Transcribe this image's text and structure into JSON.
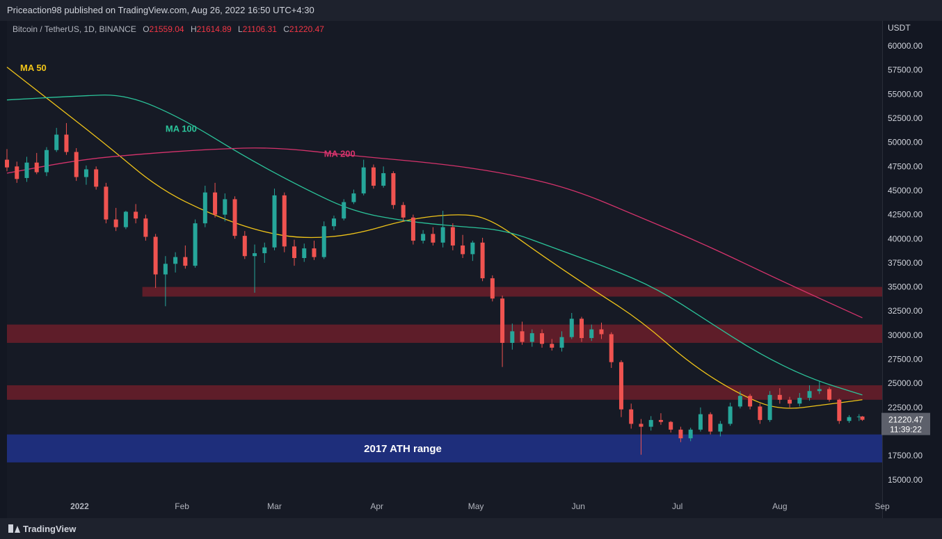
{
  "header": {
    "published": "Priceaction98 published on TradingView.com, Aug 26, 2022 16:50 UTC+4:30"
  },
  "symbol": {
    "name": "Bitcoin / TetherUS, 1D, BINANCE",
    "open_key": "O",
    "open": "21559.04",
    "high_key": "H",
    "high": "21614.89",
    "low_key": "L",
    "low": "21106.31",
    "close_key": "C",
    "close": "21220.47"
  },
  "price_axis": {
    "currency": "USDT",
    "last_price": "21220.47",
    "countdown": "11:39:22"
  },
  "footer": {
    "brand": "TradingView"
  },
  "colors": {
    "bg": "#161a25",
    "up": "#26a69a",
    "down": "#ef5350",
    "ma50": "#f0c419",
    "ma100": "#2bc49a",
    "ma200": "#d6336c",
    "zone_red": "#6b1f2a",
    "zone_blue": "#1f2f80"
  },
  "chart_data": {
    "type": "candlestick",
    "title": "Bitcoin / TetherUS, 1D, BINANCE",
    "ylabel": "USDT",
    "ylim": [
      13400,
      62600
    ],
    "y_ticks": [
      15000,
      17500,
      20000,
      22500,
      25000,
      27500,
      30000,
      32500,
      35000,
      37500,
      40000,
      42500,
      45000,
      47500,
      50000,
      52500,
      55000,
      57500,
      60000
    ],
    "y_tick_labels": [
      "15000.00",
      "17500.00",
      "20000.00",
      "22500.00",
      "25000.00",
      "27500.00",
      "30000.00",
      "32500.00",
      "35000.00",
      "37500.00",
      "40000.00",
      "42500.00",
      "45000.00",
      "47500.00",
      "50000.00",
      "52500.00",
      "55000.00",
      "57500.00",
      "60000.00"
    ],
    "x_start": "2021-12-10",
    "x_end": "2022-09-01",
    "x_ticks": [
      {
        "date": "2022-01-01",
        "label": "2022"
      },
      {
        "date": "2022-02-01",
        "label": "Feb"
      },
      {
        "date": "2022-03-01",
        "label": "Mar"
      },
      {
        "date": "2022-04-01",
        "label": "Apr"
      },
      {
        "date": "2022-05-01",
        "label": "May"
      },
      {
        "date": "2022-06-01",
        "label": "Jun"
      },
      {
        "date": "2022-07-01",
        "label": "Jul"
      },
      {
        "date": "2022-08-01",
        "label": "Aug"
      },
      {
        "date": "2022-09-01",
        "label": "Sep"
      }
    ],
    "candles": [
      {
        "d": "2021-12-10",
        "o": 48200,
        "h": 49300,
        "l": 47000,
        "c": 47400
      },
      {
        "d": "2021-12-13",
        "o": 47500,
        "h": 48000,
        "l": 45800,
        "c": 46200
      },
      {
        "d": "2021-12-16",
        "o": 46300,
        "h": 48500,
        "l": 45900,
        "c": 47900
      },
      {
        "d": "2021-12-19",
        "o": 47900,
        "h": 48900,
        "l": 46700,
        "c": 46900
      },
      {
        "d": "2021-12-22",
        "o": 46900,
        "h": 49500,
        "l": 46500,
        "c": 49200
      },
      {
        "d": "2021-12-25",
        "o": 49200,
        "h": 51500,
        "l": 49000,
        "c": 50800
      },
      {
        "d": "2021-12-28",
        "o": 50800,
        "h": 52000,
        "l": 48700,
        "c": 49000
      },
      {
        "d": "2021-12-31",
        "o": 49000,
        "h": 49400,
        "l": 46000,
        "c": 46400
      },
      {
        "d": "2022-01-03",
        "o": 46400,
        "h": 47600,
        "l": 45600,
        "c": 47200
      },
      {
        "d": "2022-01-06",
        "o": 47200,
        "h": 47500,
        "l": 45100,
        "c": 45400
      },
      {
        "d": "2022-01-09",
        "o": 45400,
        "h": 45800,
        "l": 41600,
        "c": 42000
      },
      {
        "d": "2022-01-12",
        "o": 42000,
        "h": 43200,
        "l": 40800,
        "c": 41200
      },
      {
        "d": "2022-01-15",
        "o": 41200,
        "h": 42900,
        "l": 41000,
        "c": 42800
      },
      {
        "d": "2022-01-18",
        "o": 42800,
        "h": 43600,
        "l": 41600,
        "c": 42100
      },
      {
        "d": "2022-01-21",
        "o": 42100,
        "h": 42500,
        "l": 39800,
        "c": 40200
      },
      {
        "d": "2022-01-24",
        "o": 40200,
        "h": 40500,
        "l": 34900,
        "c": 36300
      },
      {
        "d": "2022-01-27",
        "o": 36300,
        "h": 38200,
        "l": 33000,
        "c": 37400
      },
      {
        "d": "2022-01-30",
        "o": 37400,
        "h": 38600,
        "l": 36500,
        "c": 38100
      },
      {
        "d": "2022-02-02",
        "o": 38100,
        "h": 39300,
        "l": 36900,
        "c": 37200
      },
      {
        "d": "2022-02-05",
        "o": 37200,
        "h": 42000,
        "l": 37000,
        "c": 41600
      },
      {
        "d": "2022-02-08",
        "o": 41600,
        "h": 45500,
        "l": 41200,
        "c": 44800
      },
      {
        "d": "2022-02-11",
        "o": 44800,
        "h": 45800,
        "l": 42200,
        "c": 42500
      },
      {
        "d": "2022-02-14",
        "o": 42500,
        "h": 44700,
        "l": 41800,
        "c": 44100
      },
      {
        "d": "2022-02-17",
        "o": 44100,
        "h": 44400,
        "l": 40000,
        "c": 40300
      },
      {
        "d": "2022-02-20",
        "o": 40300,
        "h": 40800,
        "l": 37900,
        "c": 38200
      },
      {
        "d": "2022-02-23",
        "o": 38200,
        "h": 39400,
        "l": 34400,
        "c": 38500
      },
      {
        "d": "2022-02-26",
        "o": 38500,
        "h": 39600,
        "l": 37500,
        "c": 39100
      },
      {
        "d": "2022-03-01",
        "o": 39100,
        "h": 45200,
        "l": 38800,
        "c": 44500
      },
      {
        "d": "2022-03-04",
        "o": 44500,
        "h": 44800,
        "l": 38600,
        "c": 39200
      },
      {
        "d": "2022-03-07",
        "o": 39200,
        "h": 39900,
        "l": 37200,
        "c": 38000
      },
      {
        "d": "2022-03-10",
        "o": 38000,
        "h": 39500,
        "l": 37600,
        "c": 39000
      },
      {
        "d": "2022-03-13",
        "o": 39000,
        "h": 39800,
        "l": 37800,
        "c": 38100
      },
      {
        "d": "2022-03-16",
        "o": 38100,
        "h": 41800,
        "l": 37900,
        "c": 41300
      },
      {
        "d": "2022-03-19",
        "o": 41300,
        "h": 42400,
        "l": 40900,
        "c": 42100
      },
      {
        "d": "2022-03-22",
        "o": 42100,
        "h": 44100,
        "l": 41900,
        "c": 43800
      },
      {
        "d": "2022-03-25",
        "o": 43800,
        "h": 45100,
        "l": 43600,
        "c": 44700
      },
      {
        "d": "2022-03-28",
        "o": 44700,
        "h": 48200,
        "l": 44500,
        "c": 47400
      },
      {
        "d": "2022-03-31",
        "o": 47400,
        "h": 47700,
        "l": 45200,
        "c": 45500
      },
      {
        "d": "2022-04-03",
        "o": 45500,
        "h": 47500,
        "l": 45300,
        "c": 46800
      },
      {
        "d": "2022-04-06",
        "o": 46800,
        "h": 47000,
        "l": 43100,
        "c": 43500
      },
      {
        "d": "2022-04-09",
        "o": 43500,
        "h": 43800,
        "l": 41800,
        "c": 42200
      },
      {
        "d": "2022-04-12",
        "o": 42200,
        "h": 42500,
        "l": 39400,
        "c": 39800
      },
      {
        "d": "2022-04-15",
        "o": 39800,
        "h": 40900,
        "l": 39500,
        "c": 40500
      },
      {
        "d": "2022-04-18",
        "o": 40500,
        "h": 41200,
        "l": 39300,
        "c": 39600
      },
      {
        "d": "2022-04-21",
        "o": 39600,
        "h": 42900,
        "l": 39100,
        "c": 41200
      },
      {
        "d": "2022-04-24",
        "o": 41200,
        "h": 41600,
        "l": 38800,
        "c": 39300
      },
      {
        "d": "2022-04-27",
        "o": 39300,
        "h": 40400,
        "l": 38000,
        "c": 38400
      },
      {
        "d": "2022-04-30",
        "o": 38400,
        "h": 39800,
        "l": 37700,
        "c": 39600
      },
      {
        "d": "2022-05-03",
        "o": 39600,
        "h": 40100,
        "l": 35600,
        "c": 35900
      },
      {
        "d": "2022-05-06",
        "o": 35900,
        "h": 36200,
        "l": 33500,
        "c": 33800
      },
      {
        "d": "2022-05-09",
        "o": 33800,
        "h": 34100,
        "l": 26700,
        "c": 29200
      },
      {
        "d": "2022-05-12",
        "o": 29200,
        "h": 31200,
        "l": 28500,
        "c": 30400
      },
      {
        "d": "2022-05-15",
        "o": 30400,
        "h": 31400,
        "l": 29000,
        "c": 29300
      },
      {
        "d": "2022-05-18",
        "o": 29300,
        "h": 30600,
        "l": 28800,
        "c": 30200
      },
      {
        "d": "2022-05-21",
        "o": 30200,
        "h": 30600,
        "l": 28700,
        "c": 29100
      },
      {
        "d": "2022-05-24",
        "o": 29100,
        "h": 29600,
        "l": 28400,
        "c": 28700
      },
      {
        "d": "2022-05-27",
        "o": 28700,
        "h": 30400,
        "l": 28300,
        "c": 29800
      },
      {
        "d": "2022-05-30",
        "o": 29800,
        "h": 32300,
        "l": 29600,
        "c": 31700
      },
      {
        "d": "2022-06-02",
        "o": 31700,
        "h": 31900,
        "l": 29300,
        "c": 29700
      },
      {
        "d": "2022-06-05",
        "o": 29700,
        "h": 31100,
        "l": 29400,
        "c": 30600
      },
      {
        "d": "2022-06-08",
        "o": 30600,
        "h": 31300,
        "l": 29600,
        "c": 30100
      },
      {
        "d": "2022-06-11",
        "o": 30100,
        "h": 30300,
        "l": 26600,
        "c": 27200
      },
      {
        "d": "2022-06-14",
        "o": 27200,
        "h": 27400,
        "l": 21500,
        "c": 22300
      },
      {
        "d": "2022-06-17",
        "o": 22300,
        "h": 22900,
        "l": 20300,
        "c": 20800
      },
      {
        "d": "2022-06-20",
        "o": 20800,
        "h": 21300,
        "l": 17600,
        "c": 20500
      },
      {
        "d": "2022-06-23",
        "o": 20500,
        "h": 21600,
        "l": 20100,
        "c": 21200
      },
      {
        "d": "2022-06-26",
        "o": 21200,
        "h": 21900,
        "l": 20700,
        "c": 21000
      },
      {
        "d": "2022-06-29",
        "o": 21000,
        "h": 21100,
        "l": 19900,
        "c": 20200
      },
      {
        "d": "2022-07-02",
        "o": 20200,
        "h": 20500,
        "l": 18900,
        "c": 19300
      },
      {
        "d": "2022-07-05",
        "o": 19300,
        "h": 20400,
        "l": 19000,
        "c": 20200
      },
      {
        "d": "2022-07-08",
        "o": 20200,
        "h": 22500,
        "l": 20000,
        "c": 21800
      },
      {
        "d": "2022-07-11",
        "o": 21800,
        "h": 22000,
        "l": 19700,
        "c": 20000
      },
      {
        "d": "2022-07-14",
        "o": 20000,
        "h": 21100,
        "l": 19500,
        "c": 20800
      },
      {
        "d": "2022-07-17",
        "o": 20800,
        "h": 23000,
        "l": 20600,
        "c": 22600
      },
      {
        "d": "2022-07-20",
        "o": 22600,
        "h": 24200,
        "l": 22400,
        "c": 23700
      },
      {
        "d": "2022-07-23",
        "o": 23700,
        "h": 23900,
        "l": 22300,
        "c": 22600
      },
      {
        "d": "2022-07-26",
        "o": 22600,
        "h": 22900,
        "l": 20800,
        "c": 21200
      },
      {
        "d": "2022-07-29",
        "o": 21200,
        "h": 24200,
        "l": 21000,
        "c": 23800
      },
      {
        "d": "2022-08-01",
        "o": 23800,
        "h": 24500,
        "l": 22900,
        "c": 23300
      },
      {
        "d": "2022-08-04",
        "o": 23300,
        "h": 23600,
        "l": 22500,
        "c": 22900
      },
      {
        "d": "2022-08-07",
        "o": 22900,
        "h": 24000,
        "l": 22600,
        "c": 23500
      },
      {
        "d": "2022-08-10",
        "o": 23500,
        "h": 24800,
        "l": 23200,
        "c": 24200
      },
      {
        "d": "2022-08-13",
        "o": 24200,
        "h": 25200,
        "l": 23900,
        "c": 24400
      },
      {
        "d": "2022-08-16",
        "o": 24400,
        "h": 24600,
        "l": 23100,
        "c": 23300
      },
      {
        "d": "2022-08-19",
        "o": 23300,
        "h": 23400,
        "l": 20800,
        "c": 21100
      },
      {
        "d": "2022-08-22",
        "o": 21100,
        "h": 21700,
        "l": 20900,
        "c": 21500
      },
      {
        "d": "2022-08-25",
        "o": 21500,
        "h": 21800,
        "l": 21100,
        "c": 21560
      },
      {
        "d": "2022-08-26",
        "o": 21559.04,
        "h": 21614.89,
        "l": 21106.31,
        "c": 21220.47
      }
    ],
    "moving_averages": [
      {
        "name": "MA 50",
        "points": [
          {
            "d": "2021-12-10",
            "v": 57800
          },
          {
            "d": "2021-12-25",
            "v": 53800
          },
          {
            "d": "2022-01-10",
            "v": 49500
          },
          {
            "d": "2022-01-25",
            "v": 45200
          },
          {
            "d": "2022-02-10",
            "v": 42500
          },
          {
            "d": "2022-02-25",
            "v": 40700
          },
          {
            "d": "2022-03-10",
            "v": 40000
          },
          {
            "d": "2022-03-25",
            "v": 40400
          },
          {
            "d": "2022-04-10",
            "v": 42000
          },
          {
            "d": "2022-04-25",
            "v": 42600
          },
          {
            "d": "2022-05-05",
            "v": 42200
          },
          {
            "d": "2022-05-20",
            "v": 38500
          },
          {
            "d": "2022-06-05",
            "v": 34800
          },
          {
            "d": "2022-06-20",
            "v": 31500
          },
          {
            "d": "2022-07-05",
            "v": 27000
          },
          {
            "d": "2022-07-20",
            "v": 23800
          },
          {
            "d": "2022-08-01",
            "v": 22200
          },
          {
            "d": "2022-08-15",
            "v": 22800
          },
          {
            "d": "2022-08-26",
            "v": 23300
          }
        ]
      },
      {
        "name": "MA 100",
        "points": [
          {
            "d": "2021-12-10",
            "v": 54400
          },
          {
            "d": "2021-12-31",
            "v": 54800
          },
          {
            "d": "2022-01-15",
            "v": 55000
          },
          {
            "d": "2022-02-01",
            "v": 52500
          },
          {
            "d": "2022-02-20",
            "v": 48500
          },
          {
            "d": "2022-03-10",
            "v": 45200
          },
          {
            "d": "2022-03-25",
            "v": 42800
          },
          {
            "d": "2022-04-10",
            "v": 41800
          },
          {
            "d": "2022-04-25",
            "v": 41300
          },
          {
            "d": "2022-05-10",
            "v": 40900
          },
          {
            "d": "2022-05-25",
            "v": 39000
          },
          {
            "d": "2022-06-10",
            "v": 37000
          },
          {
            "d": "2022-06-25",
            "v": 34800
          },
          {
            "d": "2022-07-10",
            "v": 31500
          },
          {
            "d": "2022-07-25",
            "v": 28200
          },
          {
            "d": "2022-08-10",
            "v": 25500
          },
          {
            "d": "2022-08-26",
            "v": 23800
          }
        ]
      },
      {
        "name": "MA 200",
        "points": [
          {
            "d": "2021-12-10",
            "v": 46800
          },
          {
            "d": "2022-01-01",
            "v": 48200
          },
          {
            "d": "2022-01-20",
            "v": 48800
          },
          {
            "d": "2022-02-10",
            "v": 49300
          },
          {
            "d": "2022-03-01",
            "v": 49500
          },
          {
            "d": "2022-03-25",
            "v": 48600
          },
          {
            "d": "2022-04-20",
            "v": 47800
          },
          {
            "d": "2022-05-10",
            "v": 46800
          },
          {
            "d": "2022-05-30",
            "v": 45200
          },
          {
            "d": "2022-06-20",
            "v": 42200
          },
          {
            "d": "2022-07-10",
            "v": 39300
          },
          {
            "d": "2022-08-01",
            "v": 35700
          },
          {
            "d": "2022-08-26",
            "v": 31800
          }
        ]
      }
    ],
    "zones": [
      {
        "from": "2022-01-20",
        "to": "2022-09-01",
        "low": 34000,
        "high": 35000,
        "kind": "resistance",
        "label": ""
      },
      {
        "from": "2021-12-10",
        "to": "2022-09-01",
        "low": 29200,
        "high": 31100,
        "kind": "resistance",
        "label": ""
      },
      {
        "from": "2021-12-10",
        "to": "2022-09-01",
        "low": 23300,
        "high": 24800,
        "kind": "resistance",
        "label": ""
      },
      {
        "from": "2021-12-10",
        "to": "2022-09-01",
        "low": 16800,
        "high": 19700,
        "kind": "support",
        "label": "2017 ATH range"
      }
    ],
    "ma_labels": [
      {
        "text": "MA 50",
        "series": "MA 50"
      },
      {
        "text": "MA 100",
        "series": "MA 100"
      },
      {
        "text": "MA 200",
        "series": "MA 200"
      }
    ]
  }
}
